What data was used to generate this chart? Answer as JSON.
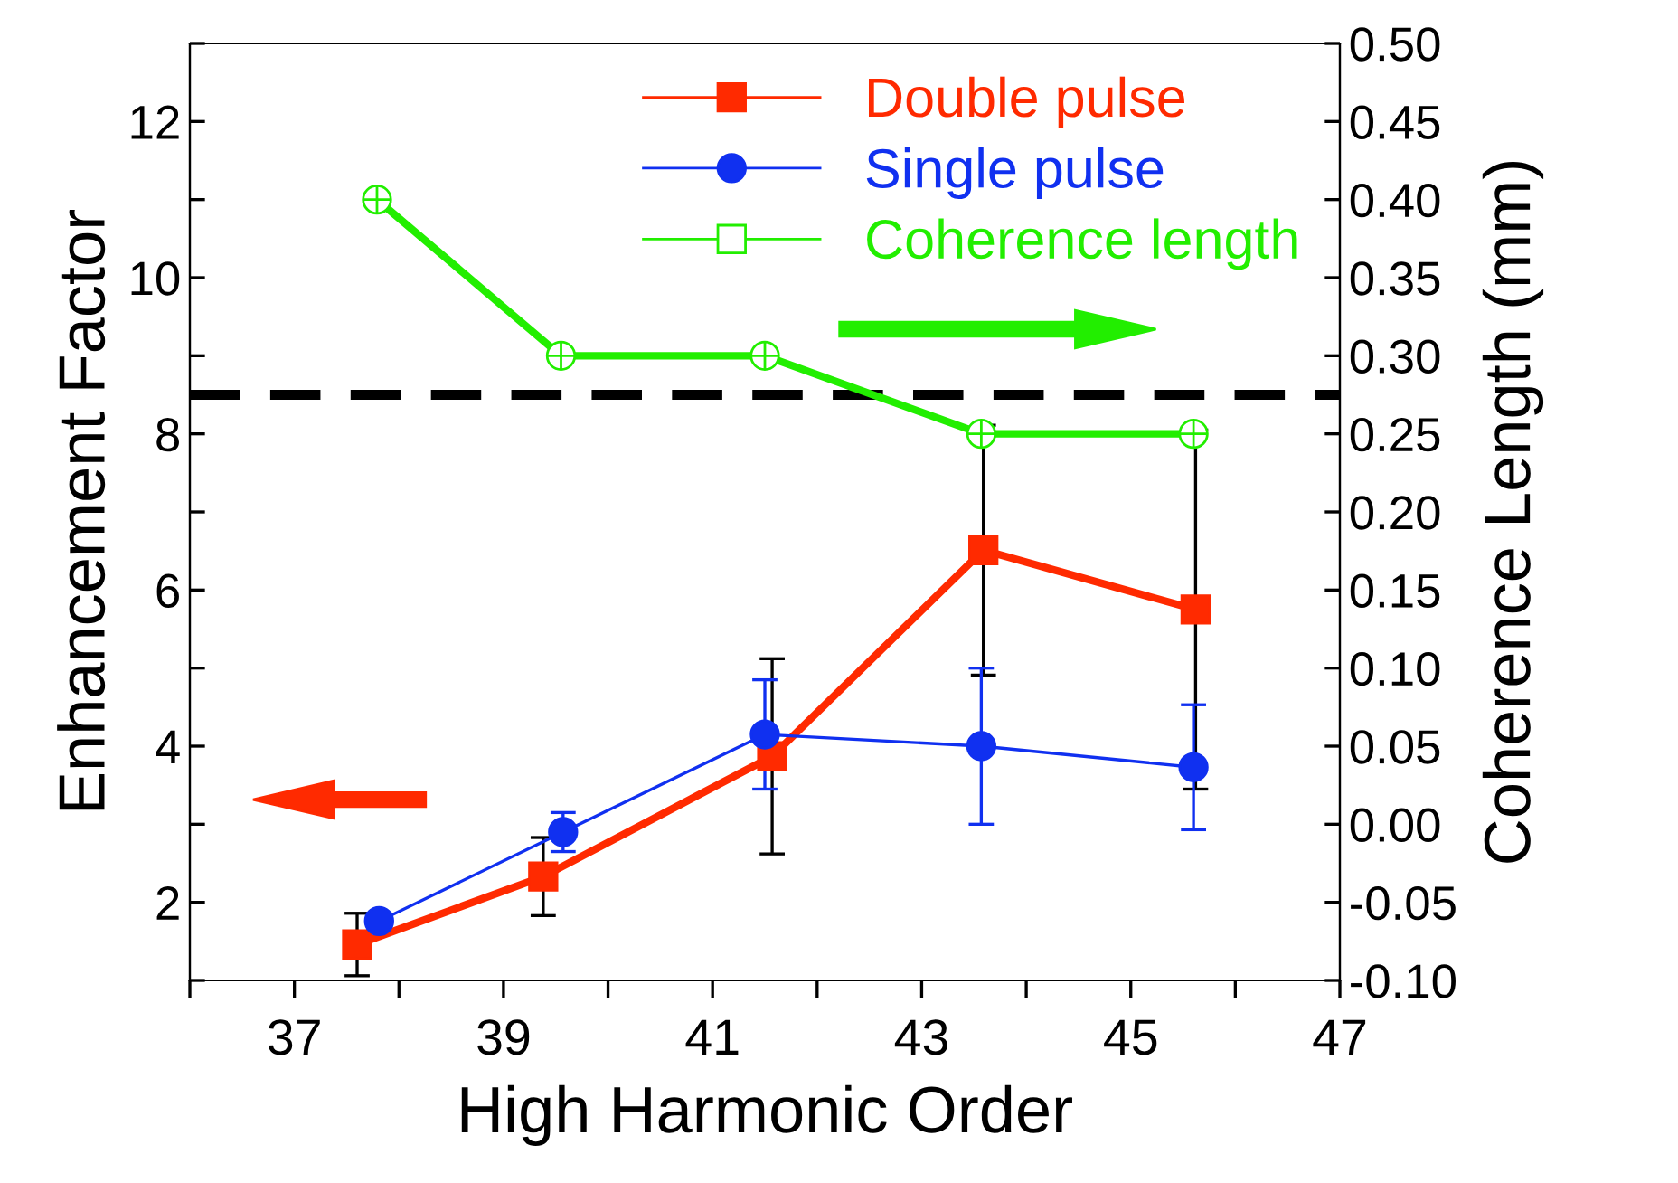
{
  "chart_data": {
    "type": "line",
    "xlabel": "High Harmonic Order",
    "ylabel": "Enhancement Factor",
    "y2label": "Coherence Length (mm)",
    "xlim": [
      36,
      47
    ],
    "xticks": [
      {
        "value": 36,
        "label": null
      },
      37,
      {
        "value": 38,
        "label": null
      },
      39,
      {
        "value": 40,
        "label": null
      },
      41,
      {
        "value": 42,
        "label": null
      },
      43,
      {
        "value": 44,
        "label": null
      },
      45,
      {
        "value": 46,
        "label": null
      },
      47
    ],
    "ylim": [
      1,
      13
    ],
    "yticks": [
      {
        "value": 1,
        "label": null
      },
      2,
      {
        "value": 3,
        "label": null
      },
      4,
      {
        "value": 5,
        "label": null
      },
      6,
      {
        "value": 7,
        "label": null
      },
      8,
      {
        "value": 9,
        "label": null
      },
      10,
      {
        "value": 11,
        "label": null
      },
      12,
      {
        "value": 13,
        "label": null
      }
    ],
    "y2lim": [
      -0.1,
      0.5
    ],
    "y2ticks": [
      {
        "value": -0.1,
        "label": "-0.10"
      },
      {
        "value": -0.05,
        "label": "-0.05"
      },
      {
        "value": 0,
        "label": "0.00"
      },
      0.05,
      {
        "value": 0.1,
        "label": "0.10"
      },
      0.15,
      {
        "value": 0.2,
        "label": "0.20"
      },
      0.25,
      {
        "value": 0.3,
        "label": "0.30"
      },
      0.35,
      {
        "value": 0.4,
        "label": "0.40"
      },
      0.45,
      {
        "value": 0.5,
        "label": "0.50"
      }
    ],
    "series": [
      {
        "name": "Double pulse",
        "color": "#ff2a00",
        "marker": "square",
        "x": [
          37.6,
          39.38,
          41.57,
          43.59,
          45.62
        ],
        "values": [
          1.46,
          2.33,
          3.87,
          6.51,
          5.75
        ],
        "errors": [
          0.4,
          0.5,
          1.25,
          1.6,
          2.3
        ]
      },
      {
        "name": "Single pulse",
        "color": "#1030f0",
        "marker": "circle",
        "x": [
          37.81,
          39.57,
          41.5,
          43.57,
          45.6
        ],
        "values": [
          1.76,
          2.9,
          4.15,
          4.0,
          3.73
        ],
        "errors": [
          0.1,
          0.25,
          0.7,
          1.0,
          0.8
        ]
      },
      {
        "name": "Coherence length",
        "color": "#22ee00",
        "marker": "circle",
        "axis": "y2",
        "x": [
          37.79,
          39.55,
          41.5,
          43.57,
          45.6
        ],
        "values": [
          0.4,
          0.3,
          0.3,
          0.25,
          0.25
        ]
      }
    ],
    "ref_lines": [
      {
        "axis": "y",
        "value": 8.5,
        "color": "#000000",
        "line_style": "dashed"
      }
    ],
    "legend": "top",
    "grid": false
  }
}
